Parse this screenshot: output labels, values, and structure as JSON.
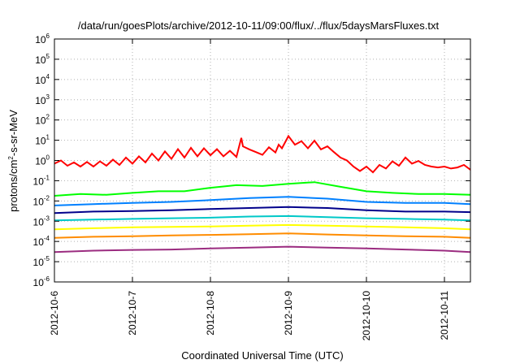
{
  "chart_data": {
    "type": "line",
    "title": "/data/run/goesPlots/archive/2012-10-11/09:00/flux/../flux/5daysMarsFluxes.txt",
    "xlabel": "Coordinated Universal Time (UTC)",
    "ylabel": {
      "prefix": "protons/cm",
      "sup": "2",
      "suffix": "-s-sr-MeV"
    },
    "y_scale": "log",
    "ylim": [
      1e-06,
      1000000.0
    ],
    "y_ticks": [
      {
        "base": "10",
        "exp": "6"
      },
      {
        "base": "10",
        "exp": "5"
      },
      {
        "base": "10",
        "exp": "4"
      },
      {
        "base": "10",
        "exp": "3"
      },
      {
        "base": "10",
        "exp": "2"
      },
      {
        "base": "10",
        "exp": "1"
      },
      {
        "base": "10",
        "exp": "0"
      },
      {
        "base": "10",
        "exp": "-1"
      },
      {
        "base": "10",
        "exp": "-2"
      },
      {
        "base": "10",
        "exp": "-3"
      },
      {
        "base": "10",
        "exp": "-4"
      },
      {
        "base": "10",
        "exp": "-5"
      },
      {
        "base": "10",
        "exp": "-6"
      }
    ],
    "x_ticks": [
      "2012-10-6",
      "2012-10-7",
      "2012-10-8",
      "2012-10-9",
      "2012-10-10",
      "2012-10-11"
    ],
    "xlim": [
      "2012-10-06T00:00",
      "2012-10-11T08:00"
    ],
    "grid": true,
    "legend": "none",
    "series": [
      {
        "color": "#ff0000",
        "x": [
          "2012-10-06T00:00",
          "2012-10-06T02:00",
          "2012-10-06T04:00",
          "2012-10-06T06:00",
          "2012-10-06T08:00",
          "2012-10-06T10:00",
          "2012-10-06T12:00",
          "2012-10-06T14:00",
          "2012-10-06T16:00",
          "2012-10-06T18:00",
          "2012-10-06T20:00",
          "2012-10-06T22:00",
          "2012-10-07T00:00",
          "2012-10-07T02:00",
          "2012-10-07T04:00",
          "2012-10-07T06:00",
          "2012-10-07T08:00",
          "2012-10-07T10:00",
          "2012-10-07T12:00",
          "2012-10-07T14:00",
          "2012-10-07T16:00",
          "2012-10-07T18:00",
          "2012-10-07T20:00",
          "2012-10-07T22:00",
          "2012-10-08T00:00",
          "2012-10-08T02:00",
          "2012-10-08T04:00",
          "2012-10-08T06:00",
          "2012-10-08T08:00",
          "2012-10-08T09:30",
          "2012-10-08T10:00",
          "2012-10-08T12:00",
          "2012-10-08T14:00",
          "2012-10-08T16:00",
          "2012-10-08T18:00",
          "2012-10-08T20:00",
          "2012-10-08T21:00",
          "2012-10-08T22:00",
          "2012-10-09T00:00",
          "2012-10-09T02:00",
          "2012-10-09T04:00",
          "2012-10-09T06:00",
          "2012-10-09T08:00",
          "2012-10-09T10:00",
          "2012-10-09T12:00",
          "2012-10-09T14:00",
          "2012-10-09T16:00",
          "2012-10-09T18:00",
          "2012-10-09T20:00",
          "2012-10-09T22:00",
          "2012-10-10T00:00",
          "2012-10-10T02:00",
          "2012-10-10T04:00",
          "2012-10-10T06:00",
          "2012-10-10T08:00",
          "2012-10-10T10:00",
          "2012-10-10T12:00",
          "2012-10-10T14:00",
          "2012-10-10T16:00",
          "2012-10-10T18:00",
          "2012-10-10T20:00",
          "2012-10-10T22:00",
          "2012-10-11T00:00",
          "2012-10-11T02:00",
          "2012-10-11T04:00",
          "2012-10-11T06:00",
          "2012-10-11T08:00"
        ],
        "y": [
          0.7,
          1.0,
          0.55,
          0.8,
          0.5,
          0.85,
          0.5,
          0.9,
          0.55,
          1.1,
          0.6,
          1.4,
          0.7,
          1.6,
          0.8,
          2.2,
          1.0,
          2.8,
          1.2,
          3.6,
          1.4,
          4.2,
          1.6,
          4.0,
          1.8,
          3.6,
          1.6,
          3.0,
          1.5,
          13,
          5.0,
          3.5,
          2.6,
          1.9,
          4.5,
          2.5,
          6.0,
          4.0,
          16,
          6.0,
          9.0,
          4.0,
          9.5,
          3.5,
          5.0,
          2.6,
          1.4,
          1.0,
          0.5,
          0.3,
          0.5,
          0.26,
          0.6,
          0.4,
          0.9,
          0.55,
          1.4,
          0.7,
          0.95,
          0.6,
          0.5,
          0.45,
          0.5,
          0.4,
          0.45,
          0.6,
          0.35
        ]
      },
      {
        "color": "#00ff00",
        "x": [
          "2012-10-06T00:00",
          "2012-10-06T08:00",
          "2012-10-06T16:00",
          "2012-10-07T00:00",
          "2012-10-07T08:00",
          "2012-10-07T16:00",
          "2012-10-08T00:00",
          "2012-10-08T08:00",
          "2012-10-08T16:00",
          "2012-10-09T00:00",
          "2012-10-09T08:00",
          "2012-10-09T16:00",
          "2012-10-10T00:00",
          "2012-10-10T08:00",
          "2012-10-10T16:00",
          "2012-10-11T00:00",
          "2012-10-11T08:00"
        ],
        "y": [
          0.018,
          0.022,
          0.02,
          0.025,
          0.03,
          0.03,
          0.045,
          0.06,
          0.055,
          0.07,
          0.085,
          0.05,
          0.03,
          0.025,
          0.022,
          0.022,
          0.02
        ]
      },
      {
        "color": "#0080ff",
        "x": [
          "2012-10-06T00:00",
          "2012-10-06T12:00",
          "2012-10-07T00:00",
          "2012-10-07T12:00",
          "2012-10-08T00:00",
          "2012-10-08T12:00",
          "2012-10-09T00:00",
          "2012-10-09T12:00",
          "2012-10-10T00:00",
          "2012-10-10T12:00",
          "2012-10-11T00:00",
          "2012-10-11T08:00"
        ],
        "y": [
          0.006,
          0.007,
          0.008,
          0.009,
          0.011,
          0.014,
          0.016,
          0.013,
          0.009,
          0.008,
          0.008,
          0.007
        ]
      },
      {
        "color": "#00008b",
        "x": [
          "2012-10-06T00:00",
          "2012-10-06T12:00",
          "2012-10-07T00:00",
          "2012-10-07T12:00",
          "2012-10-08T00:00",
          "2012-10-08T12:00",
          "2012-10-09T00:00",
          "2012-10-09T12:00",
          "2012-10-10T00:00",
          "2012-10-10T12:00",
          "2012-10-11T00:00",
          "2012-10-11T08:00"
        ],
        "y": [
          0.0025,
          0.003,
          0.0032,
          0.0035,
          0.004,
          0.0045,
          0.005,
          0.0045,
          0.0035,
          0.003,
          0.003,
          0.0028
        ]
      },
      {
        "color": "#00c8c8",
        "x": [
          "2012-10-06T00:00",
          "2012-10-06T12:00",
          "2012-10-07T00:00",
          "2012-10-07T12:00",
          "2012-10-08T00:00",
          "2012-10-08T12:00",
          "2012-10-09T00:00",
          "2012-10-09T12:00",
          "2012-10-10T00:00",
          "2012-10-10T12:00",
          "2012-10-11T00:00",
          "2012-10-11T08:00"
        ],
        "y": [
          0.0011,
          0.0012,
          0.0013,
          0.0014,
          0.0015,
          0.0017,
          0.0018,
          0.0016,
          0.0014,
          0.0013,
          0.0012,
          0.0011
        ]
      },
      {
        "color": "#ffff00",
        "x": [
          "2012-10-06T00:00",
          "2012-10-06T12:00",
          "2012-10-07T00:00",
          "2012-10-07T12:00",
          "2012-10-08T00:00",
          "2012-10-08T12:00",
          "2012-10-09T00:00",
          "2012-10-09T12:00",
          "2012-10-10T00:00",
          "2012-10-10T12:00",
          "2012-10-11T00:00",
          "2012-10-11T08:00"
        ],
        "y": [
          0.0004,
          0.00045,
          0.0005,
          0.00052,
          0.00055,
          0.0006,
          0.00065,
          0.0006,
          0.00055,
          0.0005,
          0.00045,
          0.0004
        ]
      },
      {
        "color": "#ff8c00",
        "x": [
          "2012-10-06T00:00",
          "2012-10-06T12:00",
          "2012-10-07T00:00",
          "2012-10-07T12:00",
          "2012-10-08T00:00",
          "2012-10-08T12:00",
          "2012-10-09T00:00",
          "2012-10-09T12:00",
          "2012-10-10T00:00",
          "2012-10-10T12:00",
          "2012-10-11T00:00",
          "2012-10-11T08:00"
        ],
        "y": [
          0.00015,
          0.00017,
          0.00018,
          0.0002,
          0.00021,
          0.00023,
          0.00025,
          0.00022,
          0.0002,
          0.00018,
          0.00017,
          0.00015
        ]
      },
      {
        "color": "#9b2c80",
        "x": [
          "2012-10-06T00:00",
          "2012-10-06T12:00",
          "2012-10-07T00:00",
          "2012-10-07T12:00",
          "2012-10-08T00:00",
          "2012-10-08T12:00",
          "2012-10-09T00:00",
          "2012-10-09T12:00",
          "2012-10-10T00:00",
          "2012-10-10T12:00",
          "2012-10-11T00:00",
          "2012-10-11T08:00"
        ],
        "y": [
          3e-05,
          3.5e-05,
          3.8e-05,
          4e-05,
          4.5e-05,
          5e-05,
          5.5e-05,
          5e-05,
          4.5e-05,
          4e-05,
          3.5e-05,
          3e-05
        ]
      }
    ]
  }
}
